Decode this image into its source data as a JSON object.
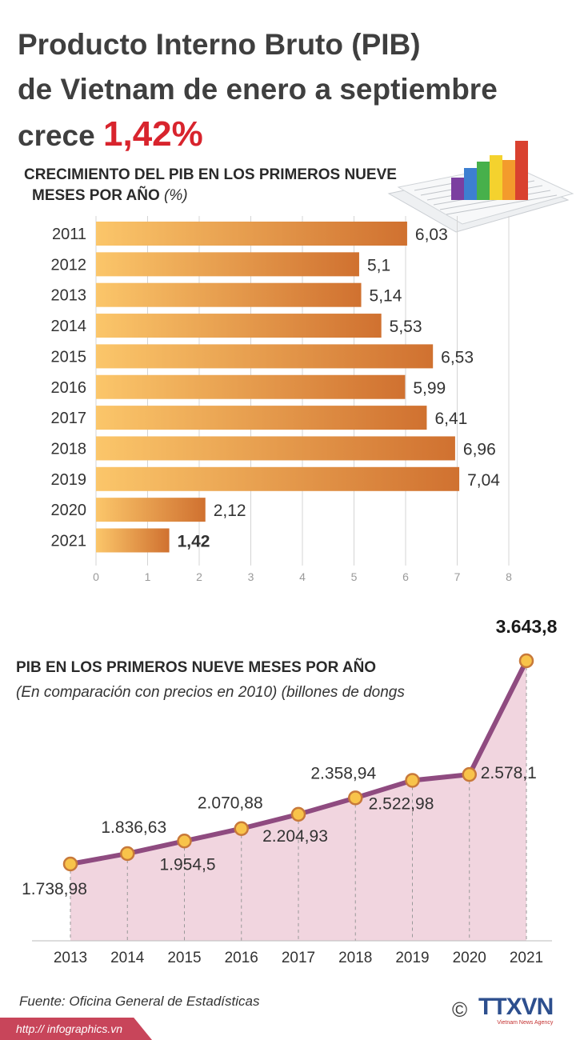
{
  "header": {
    "title_line1": "Producto Interno Bruto (PIB)",
    "title_line2": "de Vietnam de enero a septiembre",
    "title_prefix": "crece",
    "title_highlight": "1,42%"
  },
  "colors": {
    "bar_start": "#fbc66a",
    "bar_end": "#d07130",
    "line": "#8f4b80",
    "area": "#f1d5df",
    "marker_fill": "#f8c34a",
    "marker_stroke": "#c8793a",
    "highlight": "#d8242d"
  },
  "chart_data": [
    {
      "type": "bar",
      "orientation": "horizontal",
      "title": "CRECIMIENTO DEL PIB EN LOS PRIMEROS NUEVE",
      "title_line2": "MESES POR AÑO",
      "unit": "(%)",
      "categories": [
        "2011",
        "2012",
        "2013",
        "2014",
        "2015",
        "2016",
        "2017",
        "2018",
        "2019",
        "2020",
        "2021"
      ],
      "values": [
        6.03,
        5.1,
        5.14,
        5.53,
        6.53,
        5.99,
        6.41,
        6.96,
        7.04,
        2.12,
        1.42
      ],
      "value_labels": [
        "6,03",
        "5,1",
        "5,14",
        "5,53",
        "6,53",
        "5,99",
        "6,41",
        "6,96",
        "7,04",
        "2,12",
        "1,42"
      ],
      "xlim": [
        0,
        8
      ],
      "xticks": [
        "0",
        "1",
        "2",
        "3",
        "4",
        "5",
        "6",
        "7",
        "8"
      ],
      "grid": true
    },
    {
      "type": "area",
      "title": "PIB EN LOS PRIMEROS NUEVE MESES POR AÑO",
      "subtitle": "(En comparación con precios en 2010) (billones de dongs",
      "x": [
        "2013",
        "2014",
        "2015",
        "2016",
        "2017",
        "2018",
        "2019",
        "2020",
        "2021"
      ],
      "values": [
        1738.98,
        1836.63,
        1954.5,
        2070.88,
        2204.93,
        2358.94,
        2522.98,
        2578.1,
        3643.8
      ],
      "value_labels": [
        "1.738,98",
        "1.836,63",
        "1.954,5",
        "2.070,88",
        "2.204,93",
        "2.358,94",
        "2.522,98",
        "2.578,1",
        "3.643,8"
      ],
      "grid": false
    }
  ],
  "footer": {
    "source": "Fuente: Oficina General de Estadísticas",
    "url": "http:// infographics.vn",
    "copyright": "©",
    "logo": "TTXVN",
    "logo_sub": "Vietnam News Agency"
  }
}
